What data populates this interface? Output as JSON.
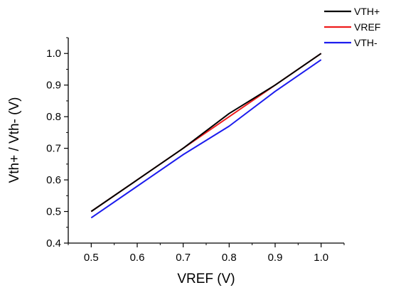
{
  "chart_data": {
    "type": "line",
    "xlabel": "VREF (V)",
    "ylabel": "Vth+ / Vth- (V)",
    "xlim": [
      0.45,
      1.05
    ],
    "ylim": [
      0.4,
      1.05
    ],
    "xticks": [
      0.5,
      0.6,
      0.7,
      0.8,
      0.9,
      1.0
    ],
    "xtick_labels": [
      "0.5",
      "0.6",
      "0.7",
      "0.8",
      "0.9",
      "1.0"
    ],
    "yticks": [
      0.4,
      0.5,
      0.6,
      0.7,
      0.8,
      0.9,
      1.0
    ],
    "ytick_labels": [
      "0.4",
      "0.5",
      "0.6",
      "0.7",
      "0.8",
      "0.9",
      "1.0"
    ],
    "grid": false,
    "legend_position": "top-right",
    "series": [
      {
        "name": "VTH+",
        "color": "#000000",
        "x": [
          0.5,
          0.6,
          0.7,
          0.8,
          0.9,
          1.0
        ],
        "y": [
          0.5,
          0.6,
          0.7,
          0.81,
          0.9,
          1.0
        ]
      },
      {
        "name": "VREF",
        "color": "#ee1c1c",
        "x": [
          0.5,
          0.6,
          0.7,
          0.8,
          0.9,
          1.0
        ],
        "y": [
          0.5,
          0.6,
          0.7,
          0.8,
          0.9,
          1.0
        ]
      },
      {
        "name": "VTH-",
        "color": "#1c1cee",
        "x": [
          0.5,
          0.6,
          0.7,
          0.8,
          0.9,
          1.0
        ],
        "y": [
          0.48,
          0.58,
          0.68,
          0.77,
          0.88,
          0.98
        ]
      }
    ]
  }
}
